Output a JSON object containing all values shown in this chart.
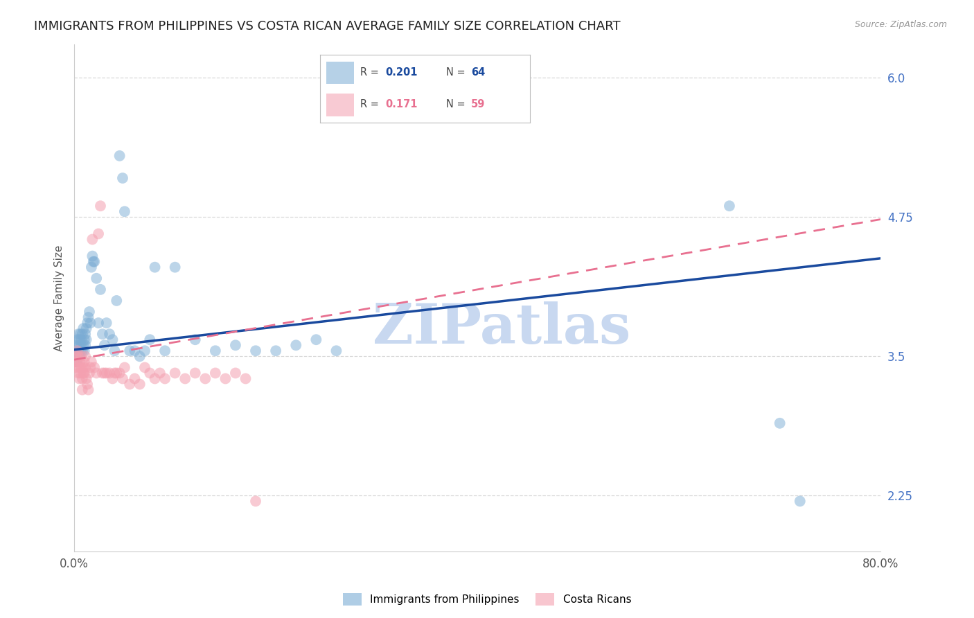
{
  "title": "IMMIGRANTS FROM PHILIPPINES VS COSTA RICAN AVERAGE FAMILY SIZE CORRELATION CHART",
  "source": "Source: ZipAtlas.com",
  "ylabel": "Average Family Size",
  "xlim": [
    0.0,
    0.8
  ],
  "ylim": [
    1.75,
    6.3
  ],
  "yticks": [
    2.25,
    3.5,
    4.75,
    6.0
  ],
  "xticks": [
    0.0,
    0.2,
    0.4,
    0.6,
    0.8
  ],
  "xticklabels": [
    "0.0%",
    "",
    "",
    "",
    "80.0%"
  ],
  "background_color": "#ffffff",
  "grid_color": "#d8d8d8",
  "watermark": "ZIPatlas",
  "watermark_color": "#c8d8f0",
  "title_fontsize": 13,
  "axis_label_fontsize": 11,
  "tick_fontsize": 12,
  "ytick_color": "#4472c4",
  "scatter_blue_color": "#7bacd4",
  "scatter_pink_color": "#f4a0b0",
  "line_blue_color": "#1a4a9e",
  "line_pink_color": "#e87090",
  "label1": "Immigrants from Philippines",
  "label2": "Costa Ricans",
  "legend_r1": "0.201",
  "legend_n1": "64",
  "legend_r2": "0.171",
  "legend_n2": "59",
  "philippines_x": [
    0.001,
    0.002,
    0.002,
    0.003,
    0.003,
    0.004,
    0.004,
    0.005,
    0.005,
    0.005,
    0.006,
    0.006,
    0.007,
    0.007,
    0.008,
    0.008,
    0.009,
    0.009,
    0.01,
    0.01,
    0.011,
    0.011,
    0.012,
    0.012,
    0.013,
    0.014,
    0.015,
    0.016,
    0.017,
    0.018,
    0.019,
    0.02,
    0.022,
    0.024,
    0.026,
    0.028,
    0.03,
    0.032,
    0.035,
    0.038,
    0.04,
    0.042,
    0.045,
    0.048,
    0.05,
    0.055,
    0.06,
    0.065,
    0.07,
    0.075,
    0.08,
    0.09,
    0.1,
    0.12,
    0.14,
    0.16,
    0.18,
    0.2,
    0.22,
    0.24,
    0.26,
    0.65,
    0.7,
    0.72
  ],
  "philippines_y": [
    3.55,
    3.6,
    3.45,
    3.65,
    3.5,
    3.7,
    3.55,
    3.6,
    3.65,
    3.5,
    3.7,
    3.55,
    3.6,
    3.65,
    3.55,
    3.7,
    3.75,
    3.6,
    3.65,
    3.55,
    3.7,
    3.6,
    3.75,
    3.65,
    3.8,
    3.85,
    3.9,
    3.8,
    4.3,
    4.4,
    4.35,
    4.35,
    4.2,
    3.8,
    4.1,
    3.7,
    3.6,
    3.8,
    3.7,
    3.65,
    3.55,
    4.0,
    5.3,
    5.1,
    4.8,
    3.55,
    3.55,
    3.5,
    3.55,
    3.65,
    4.3,
    3.55,
    4.3,
    3.65,
    3.55,
    3.6,
    3.55,
    3.55,
    3.6,
    3.65,
    3.55,
    4.85,
    2.9,
    2.2
  ],
  "costarica_x": [
    0.001,
    0.002,
    0.002,
    0.003,
    0.003,
    0.004,
    0.004,
    0.005,
    0.005,
    0.006,
    0.006,
    0.007,
    0.007,
    0.008,
    0.008,
    0.009,
    0.009,
    0.01,
    0.01,
    0.011,
    0.011,
    0.012,
    0.013,
    0.014,
    0.015,
    0.016,
    0.017,
    0.018,
    0.02,
    0.022,
    0.024,
    0.026,
    0.028,
    0.03,
    0.032,
    0.035,
    0.038,
    0.04,
    0.042,
    0.045,
    0.048,
    0.05,
    0.055,
    0.06,
    0.065,
    0.07,
    0.075,
    0.08,
    0.085,
    0.09,
    0.1,
    0.11,
    0.12,
    0.13,
    0.14,
    0.15,
    0.16,
    0.17,
    0.18
  ],
  "costarica_y": [
    3.45,
    3.5,
    3.4,
    3.55,
    3.45,
    3.35,
    3.5,
    3.4,
    3.3,
    3.45,
    3.35,
    3.5,
    3.4,
    3.3,
    3.2,
    3.4,
    3.35,
    3.45,
    3.35,
    3.5,
    3.4,
    3.3,
    3.25,
    3.2,
    3.35,
    3.4,
    3.45,
    4.55,
    3.4,
    3.35,
    4.6,
    4.85,
    3.35,
    3.35,
    3.35,
    3.35,
    3.3,
    3.35,
    3.35,
    3.35,
    3.3,
    3.4,
    3.25,
    3.3,
    3.25,
    3.4,
    3.35,
    3.3,
    3.35,
    3.3,
    3.35,
    3.3,
    3.35,
    3.3,
    3.35,
    3.3,
    3.35,
    3.3,
    2.2
  ]
}
